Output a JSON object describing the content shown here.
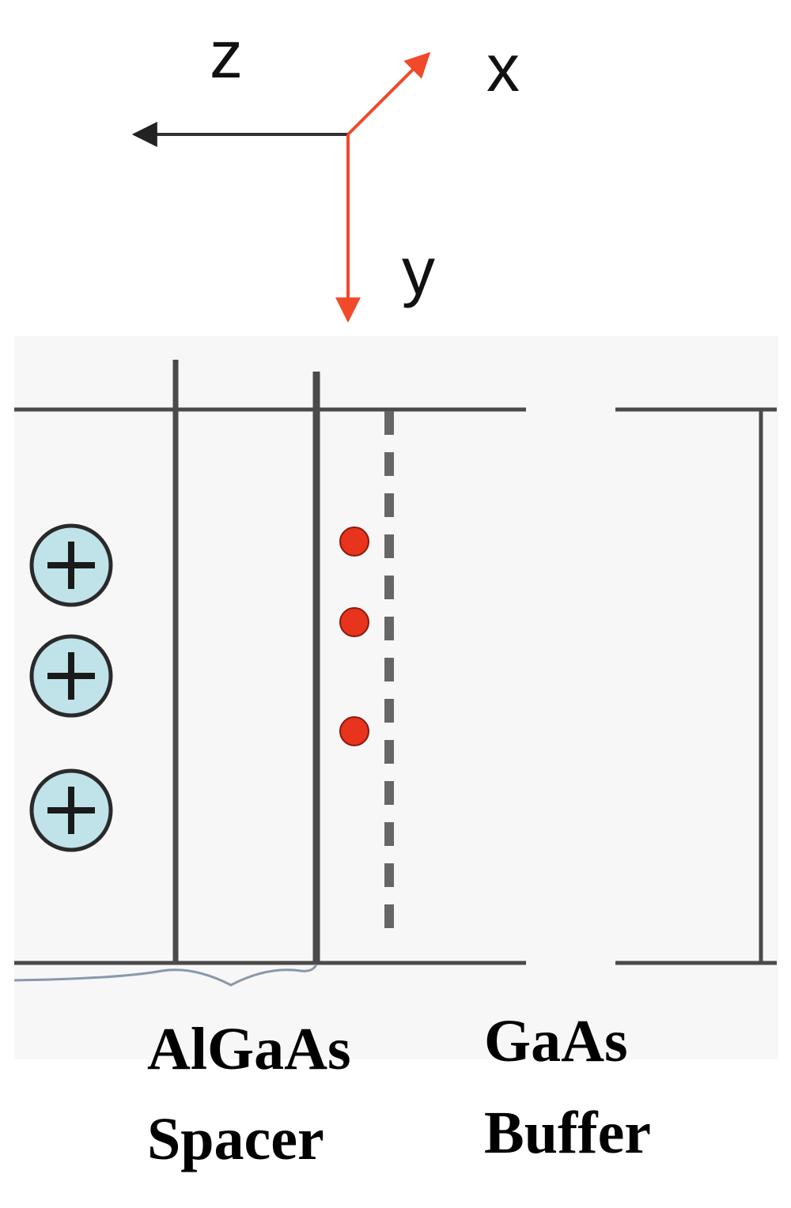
{
  "axes": {
    "z_label": "z",
    "x_label": "x",
    "y_label": "y",
    "z_color": "#333333",
    "xy_color": "#f04a2a"
  },
  "layers": {
    "spacer_line1": "AlGaAs",
    "spacer_line2": "Spacer",
    "buffer_line1": "GaAs",
    "buffer_line2": "Buffer"
  },
  "ions": {
    "count": 3,
    "symbol": "+",
    "fill_color": "#bfe3e8",
    "edge_color": "#2a2a2a"
  },
  "electrons": {
    "count": 3,
    "color": "#e8341c"
  },
  "colors": {
    "line": "#4a4a4a",
    "panel": "#f7f7f7"
  }
}
